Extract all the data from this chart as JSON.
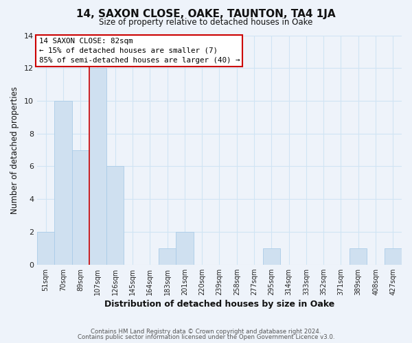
{
  "title": "14, SAXON CLOSE, OAKE, TAUNTON, TA4 1JA",
  "subtitle": "Size of property relative to detached houses in Oake",
  "xlabel": "Distribution of detached houses by size in Oake",
  "ylabel": "Number of detached properties",
  "bar_color": "#cfe0f0",
  "bar_edge_color": "#aacce8",
  "categories": [
    "51sqm",
    "70sqm",
    "89sqm",
    "107sqm",
    "126sqm",
    "145sqm",
    "164sqm",
    "183sqm",
    "201sqm",
    "220sqm",
    "239sqm",
    "258sqm",
    "277sqm",
    "295sqm",
    "314sqm",
    "333sqm",
    "352sqm",
    "371sqm",
    "389sqm",
    "408sqm",
    "427sqm"
  ],
  "values": [
    2,
    10,
    7,
    12,
    6,
    0,
    0,
    1,
    2,
    0,
    0,
    0,
    0,
    1,
    0,
    0,
    0,
    0,
    1,
    0,
    1
  ],
  "ylim": [
    0,
    14
  ],
  "yticks": [
    0,
    2,
    4,
    6,
    8,
    10,
    12,
    14
  ],
  "red_line_index": 2,
  "annotation_title": "14 SAXON CLOSE: 82sqm",
  "annotation_line1": "← 15% of detached houses are smaller (7)",
  "annotation_line2": "85% of semi-detached houses are larger (40) →",
  "grid_color": "#d0e4f4",
  "footer_line1": "Contains HM Land Registry data © Crown copyright and database right 2024.",
  "footer_line2": "Contains public sector information licensed under the Open Government Licence v3.0.",
  "background_color": "#eef3fa"
}
